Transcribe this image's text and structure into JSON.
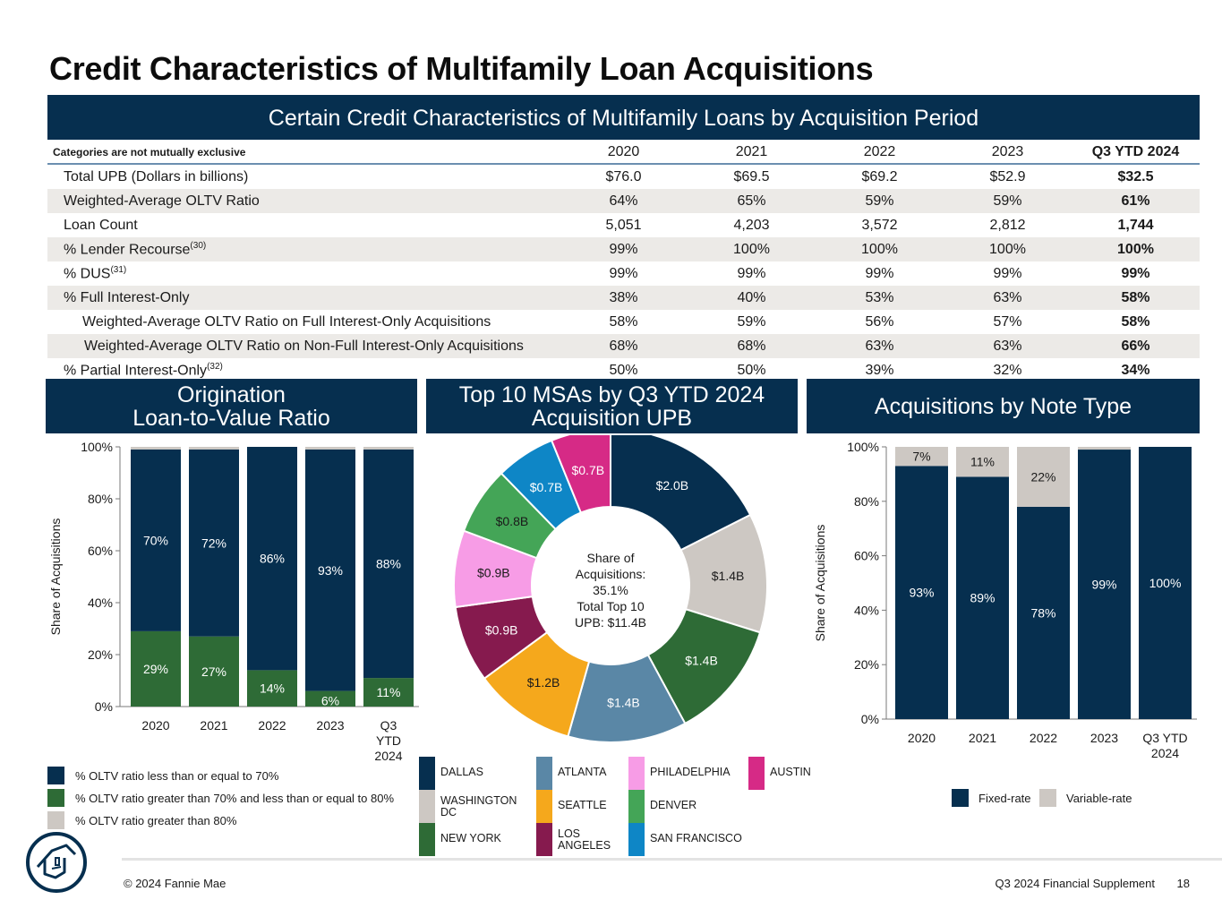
{
  "title": "Credit Characteristics of Multifamily Loan Acquisitions",
  "table": {
    "banner": "Certain Credit Characteristics of Multifamily Loans by Acquisition Period",
    "note": "Categories are not mutually exclusive",
    "columns": [
      "2020",
      "2021",
      "2022",
      "2023",
      "Q3 YTD 2024"
    ],
    "rows": [
      {
        "label": "Total UPB (Dollars in billions)",
        "sup": "",
        "values": [
          "$76.0",
          "$69.5",
          "$69.2",
          "$52.9",
          "$32.5"
        ]
      },
      {
        "label": "Weighted-Average OLTV Ratio",
        "sup": "",
        "values": [
          "64%",
          "65%",
          "59%",
          "59%",
          "61%"
        ]
      },
      {
        "label": "Loan Count",
        "sup": "",
        "values": [
          "5,051",
          "4,203",
          "3,572",
          "2,812",
          "1,744"
        ]
      },
      {
        "label": "% Lender Recourse",
        "sup": "(30)",
        "values": [
          "99%",
          "100%",
          "100%",
          "100%",
          "100%"
        ]
      },
      {
        "label": "% DUS",
        "sup": "(31)",
        "values": [
          "99%",
          "99%",
          "99%",
          "99%",
          "99%"
        ]
      },
      {
        "label": "% Full Interest-Only",
        "sup": "",
        "values": [
          "38%",
          "40%",
          "53%",
          "63%",
          "58%"
        ]
      },
      {
        "label": "Weighted-Average OLTV Ratio on Full Interest-Only Acquisitions",
        "sup": "",
        "values": [
          "58%",
          "59%",
          "56%",
          "57%",
          "58%"
        ]
      },
      {
        "label": "Weighted-Average OLTV Ratio on Non-Full Interest-Only Acquisitions",
        "sup": "",
        "values": [
          "68%",
          "68%",
          "63%",
          "63%",
          "66%"
        ]
      },
      {
        "label": "% Partial Interest-Only",
        "sup": "(32)",
        "values": [
          "50%",
          "50%",
          "39%",
          "32%",
          "34%"
        ]
      }
    ]
  },
  "sections": {
    "oltv_title_line1": "Origination",
    "oltv_title_line2": "Loan-to-Value Ratio",
    "msa_title_line1": "Top 10 MSAs by Q3 YTD 2024",
    "msa_title_line2": "Acquisition UPB",
    "note_title": "Acquisitions by Note Type"
  },
  "colors": {
    "navy": "#062f4f",
    "green": "#2e6b36",
    "gray": "#cdc8c3"
  },
  "chart_data": [
    {
      "type": "bar",
      "stacked": true,
      "title": "Origination Loan-to-Value Ratio",
      "ylabel": "Share of Acquisitions",
      "ylim": [
        0,
        100
      ],
      "yticks": [
        "0%",
        "20%",
        "40%",
        "60%",
        "80%",
        "100%"
      ],
      "categories": [
        "2020",
        "2021",
        "2022",
        "2023",
        "Q3 YTD 2024"
      ],
      "category_lines": [
        [
          "2020"
        ],
        [
          "2021"
        ],
        [
          "2022"
        ],
        [
          "2023"
        ],
        [
          "Q3",
          "YTD",
          "2024"
        ]
      ],
      "series": [
        {
          "name": "% OLTV ratio greater than 70% and less than or equal to 80%",
          "color": "#2e6b36",
          "values": [
            29,
            27,
            14,
            6,
            11
          ],
          "labels": [
            "29%",
            "27%",
            "14%",
            "6%",
            "11%"
          ]
        },
        {
          "name": "% OLTV ratio less than or equal to 70%",
          "color": "#062f4f",
          "values": [
            70,
            72,
            86,
            93,
            88
          ],
          "labels": [
            "70%",
            "72%",
            "86%",
            "93%",
            "88%"
          ]
        },
        {
          "name": "% OLTV ratio greater than 80%",
          "color": "#cdc8c3",
          "values": [
            1,
            1,
            0,
            1,
            1
          ],
          "labels": [
            "",
            "",
            "",
            "",
            ""
          ]
        }
      ],
      "legend": [
        {
          "label": "% OLTV ratio less than or equal to 70%",
          "color": "#062f4f"
        },
        {
          "label": "% OLTV ratio greater than 70% and less than or equal to 80%",
          "color": "#2e6b36"
        },
        {
          "label": "% OLTV ratio greater than 80%",
          "color": "#cdc8c3"
        }
      ]
    },
    {
      "type": "pie",
      "donut": true,
      "title": "Top 10 MSAs by Q3 YTD 2024 Acquisition UPB",
      "center_lines": [
        "Share of",
        "Acquisitions:",
        "35.1%",
        "Total Top 10",
        "UPB: $11.4B"
      ],
      "slices": [
        {
          "name": "DALLAS",
          "value": 2.0,
          "label": "$2.0B",
          "color": "#062f4f",
          "text": "#ffffff"
        },
        {
          "name": "WASHINGTON DC",
          "value": 1.4,
          "label": "$1.4B",
          "color": "#cdc8c3",
          "text": "#1a1a1a"
        },
        {
          "name": "NEW YORK",
          "value": 1.4,
          "label": "$1.4B",
          "color": "#2e6b36",
          "text": "#ffffff"
        },
        {
          "name": "ATLANTA",
          "value": 1.4,
          "label": "$1.4B",
          "color": "#5a87a6",
          "text": "#ffffff"
        },
        {
          "name": "SEATTLE",
          "value": 1.2,
          "label": "$1.2B",
          "color": "#f5a81c",
          "text": "#1a1a1a"
        },
        {
          "name": "LOS ANGELES",
          "value": 0.9,
          "label": "$0.9B",
          "color": "#861a4e",
          "text": "#ffffff"
        },
        {
          "name": "PHILADELPHIA",
          "value": 0.9,
          "label": "$0.9B",
          "color": "#f79ce6",
          "text": "#1a1a1a"
        },
        {
          "name": "DENVER",
          "value": 0.8,
          "label": "$0.8B",
          "color": "#44a557",
          "text": "#1a1a1a"
        },
        {
          "name": "SAN FRANCISCO",
          "value": 0.7,
          "label": "$0.7B",
          "color": "#0e86c6",
          "text": "#ffffff"
        },
        {
          "name": "AUSTIN",
          "value": 0.7,
          "label": "$0.7B",
          "color": "#d62a86",
          "text": "#ffffff"
        }
      ],
      "legend": [
        {
          "lines": [
            "DALLAS"
          ],
          "color": "#062f4f"
        },
        {
          "lines": [
            "WASHINGTON",
            "DC"
          ],
          "color": "#cdc8c3"
        },
        {
          "lines": [
            "NEW YORK"
          ],
          "color": "#2e6b36"
        },
        {
          "lines": [
            "ATLANTA"
          ],
          "color": "#5a87a6"
        },
        {
          "lines": [
            "SEATTLE"
          ],
          "color": "#f5a81c"
        },
        {
          "lines": [
            "LOS",
            "ANGELES"
          ],
          "color": "#861a4e"
        },
        {
          "lines": [
            "PHILADELPHIA"
          ],
          "color": "#f79ce6"
        },
        {
          "lines": [
            "DENVER"
          ],
          "color": "#44a557"
        },
        {
          "lines": [
            "SAN FRANCISCO"
          ],
          "color": "#0e86c6"
        },
        {
          "lines": [
            "AUSTIN"
          ],
          "color": "#d62a86"
        }
      ]
    },
    {
      "type": "bar",
      "stacked": true,
      "title": "Acquisitions by Note Type",
      "ylabel": "Share of Acquisitions",
      "ylim": [
        0,
        100
      ],
      "yticks": [
        "0%",
        "20%",
        "40%",
        "60%",
        "80%",
        "100%"
      ],
      "categories": [
        "2020",
        "2021",
        "2022",
        "2023",
        "Q3 YTD 2024"
      ],
      "category_lines": [
        [
          "2020"
        ],
        [
          "2021"
        ],
        [
          "2022"
        ],
        [
          "2023"
        ],
        [
          "Q3 YTD",
          "2024"
        ]
      ],
      "series": [
        {
          "name": "Fixed-rate",
          "color": "#062f4f",
          "values": [
            93,
            89,
            78,
            99,
            100
          ],
          "labels": [
            "93%",
            "89%",
            "78%",
            "99%",
            "100%"
          ]
        },
        {
          "name": "Variable-rate",
          "color": "#cdc8c3",
          "values": [
            7,
            11,
            22,
            1,
            0
          ],
          "labels": [
            "7%",
            "11%",
            "22%",
            "",
            ""
          ]
        }
      ],
      "legend": [
        {
          "label": "Fixed-rate",
          "color": "#062f4f"
        },
        {
          "label": "Variable-rate",
          "color": "#cdc8c3"
        }
      ]
    }
  ],
  "footer": {
    "copyright": "© 2024 Fannie Mae",
    "supplement": "Q3 2024 Financial Supplement",
    "page": "18"
  }
}
